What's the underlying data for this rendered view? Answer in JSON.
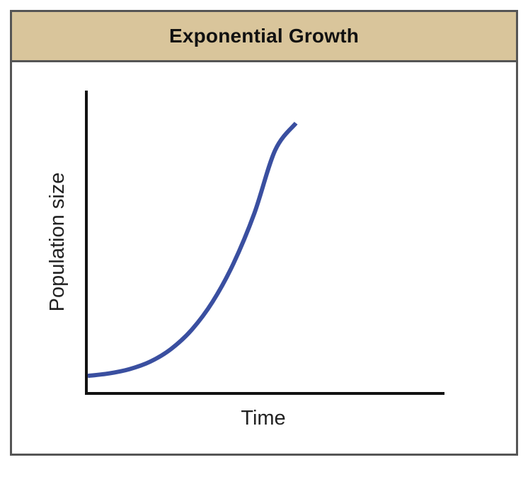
{
  "chart_data": {
    "type": "line",
    "title": "Exponential Growth",
    "xlabel": "Time",
    "ylabel": "Population size",
    "grid": false,
    "legend": "none",
    "series": [
      {
        "color": "#3a4fa0",
        "x": [
          0,
          0.1,
          0.2,
          0.3,
          0.4,
          0.5,
          0.6,
          0.7,
          0.8,
          0.9,
          1.0
        ],
        "values": [
          0.06,
          0.069,
          0.085,
          0.113,
          0.16,
          0.232,
          0.336,
          0.478,
          0.664,
          0.899,
          1.0
        ]
      }
    ],
    "xlim": [
      0,
      1.7
    ],
    "ylim": [
      0,
      1.1
    ]
  },
  "colors": {
    "header_bg": "#d9c59b",
    "border": "#555555",
    "curve": "#3a4fa0",
    "axis": "#111111"
  }
}
